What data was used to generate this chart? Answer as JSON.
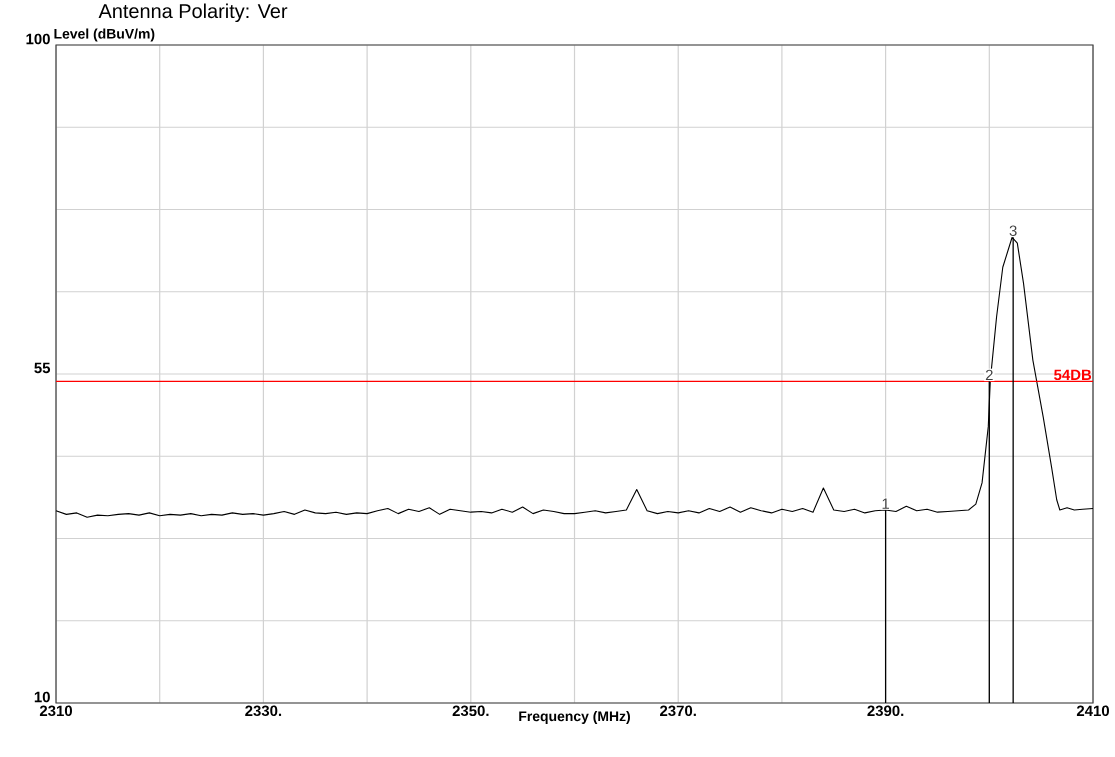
{
  "chart_data": {
    "type": "line",
    "title": "Antenna Polarity: Ver",
    "xlabel": "Frequency (MHz)",
    "ylabel": "Level (dBuV/m)",
    "xlim": [
      2310,
      2410
    ],
    "ylim": [
      10,
      100
    ],
    "xticks": [
      2310,
      {
        "value": 2320,
        "label": null
      },
      {
        "value": 2330,
        "label": "2330."
      },
      {
        "value": 2340,
        "label": null
      },
      {
        "value": 2350,
        "label": "2350."
      },
      {
        "value": 2360,
        "label": null
      },
      {
        "value": 2370,
        "label": "2370."
      },
      {
        "value": 2380,
        "label": null
      },
      {
        "value": 2390,
        "label": "2390."
      },
      {
        "value": 2400,
        "label": null
      },
      2410
    ],
    "yticks": [
      10,
      {
        "value": 21.25,
        "label": null
      },
      {
        "value": 32.5,
        "label": null
      },
      {
        "value": 43.75,
        "label": null
      },
      55,
      {
        "value": 66.25,
        "label": null
      },
      {
        "value": 77.5,
        "label": null
      },
      {
        "value": 88.75,
        "label": null
      },
      100
    ],
    "grid": true,
    "series": [
      {
        "color": "#000000",
        "x": [
          2310,
          2311,
          2312,
          2313,
          2314,
          2315,
          2316,
          2317,
          2318,
          2319,
          2320,
          2321,
          2322,
          2323,
          2324,
          2325,
          2326,
          2327,
          2328,
          2329,
          2330,
          2331,
          2332,
          2333,
          2334,
          2335,
          2336,
          2337,
          2338,
          2339,
          2340,
          2341,
          2342,
          2343,
          2344,
          2345,
          2346,
          2347,
          2348,
          2349,
          2350,
          2351,
          2352,
          2353,
          2354,
          2355,
          2356,
          2357,
          2358,
          2359,
          2360,
          2361,
          2362,
          2363,
          2364,
          2365,
          2366,
          2367,
          2368,
          2369,
          2370,
          2371,
          2372,
          2373,
          2374,
          2375,
          2376,
          2377,
          2378,
          2379,
          2380,
          2381,
          2382,
          2383,
          2384,
          2385,
          2386,
          2387,
          2388,
          2389,
          2390,
          2391,
          2392,
          2393,
          2394,
          2395,
          2396,
          2397,
          2398,
          2398.7,
          2399.3,
          2399.9,
          2400.1,
          2400.7,
          2401.3,
          2402.2,
          2402.7,
          2403.3,
          2404.2,
          2405.2,
          2406.0,
          2406.5,
          2406.8,
          2407.5,
          2408.2,
          2409,
          2410
        ],
        "values": [
          36.3,
          35.8,
          36.0,
          35.4,
          35.7,
          35.6,
          35.8,
          35.9,
          35.7,
          36.0,
          35.6,
          35.8,
          35.7,
          35.9,
          35.6,
          35.8,
          35.7,
          36.0,
          35.8,
          35.9,
          35.7,
          35.9,
          36.2,
          35.8,
          36.4,
          36.0,
          35.9,
          36.1,
          35.8,
          36.0,
          35.9,
          36.3,
          36.6,
          35.9,
          36.5,
          36.2,
          36.7,
          35.8,
          36.5,
          36.3,
          36.1,
          36.2,
          36.0,
          36.5,
          36.1,
          36.8,
          35.9,
          36.4,
          36.2,
          35.9,
          35.9,
          36.1,
          36.3,
          36.0,
          36.2,
          36.4,
          39.2,
          36.3,
          35.9,
          36.2,
          36.0,
          36.3,
          36.0,
          36.6,
          36.2,
          36.8,
          36.1,
          36.7,
          36.3,
          36.0,
          36.5,
          36.2,
          36.6,
          36.1,
          39.4,
          36.4,
          36.2,
          36.5,
          36.0,
          36.3,
          36.4,
          36.2,
          36.9,
          36.3,
          36.5,
          36.1,
          36.2,
          36.3,
          36.4,
          37.2,
          40.1,
          47.8,
          54.2,
          62.8,
          69.6,
          73.7,
          72.9,
          67.4,
          56.9,
          49.1,
          42.3,
          37.8,
          36.4,
          36.7,
          36.4,
          36.5,
          36.6
        ]
      }
    ],
    "ref_lines": [
      {
        "axis": "y",
        "value": 54,
        "label": "54DB",
        "color": "#ff0000"
      }
    ],
    "annotations": [
      {
        "text": "1",
        "x": 2390,
        "y": 36.4
      },
      {
        "text": "2",
        "x": 2400,
        "y": 54
      },
      {
        "text": "3",
        "x": 2402.3,
        "y": 73.7
      }
    ]
  }
}
